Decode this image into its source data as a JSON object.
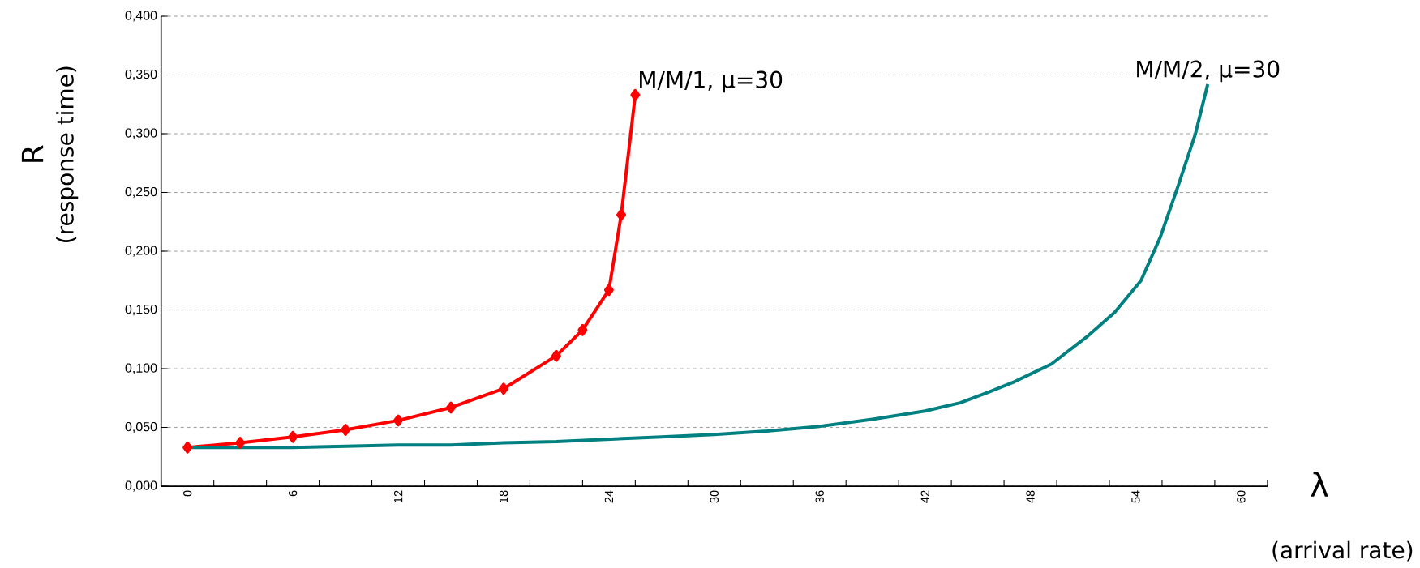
{
  "chart_data": {
    "type": "line",
    "xlabel": "λ",
    "ylabel": "R",
    "annotations": [
      "(response time)",
      "(arrival rate)"
    ],
    "xlim": [
      -1.5,
      61.5
    ],
    "xticks": [
      {
        "value": -1.5,
        "label": null
      },
      {
        "value": 0,
        "label": "0"
      },
      {
        "value": 1.5,
        "label": null
      },
      {
        "value": 4.5,
        "label": null
      },
      {
        "value": 6,
        "label": "6"
      },
      {
        "value": 7.5,
        "label": null
      },
      {
        "value": 10.5,
        "label": null
      },
      {
        "value": 12,
        "label": "12"
      },
      {
        "value": 13.5,
        "label": null
      },
      {
        "value": 16.5,
        "label": null
      },
      {
        "value": 18,
        "label": "18"
      },
      {
        "value": 19.5,
        "label": null
      },
      {
        "value": 22.5,
        "label": null
      },
      {
        "value": 24,
        "label": "24"
      },
      {
        "value": 25.5,
        "label": null
      },
      {
        "value": 28.5,
        "label": null
      },
      {
        "value": 30,
        "label": "30"
      },
      {
        "value": 31.5,
        "label": null
      },
      {
        "value": 34.5,
        "label": null
      },
      {
        "value": 36,
        "label": "36"
      },
      {
        "value": 37.5,
        "label": null
      },
      {
        "value": 40.5,
        "label": null
      },
      {
        "value": 42,
        "label": "42"
      },
      {
        "value": 43.5,
        "label": null
      },
      {
        "value": 46.5,
        "label": null
      },
      {
        "value": 48,
        "label": "48"
      },
      {
        "value": 49.5,
        "label": null
      },
      {
        "value": 52.5,
        "label": null
      },
      {
        "value": 54,
        "label": "54"
      },
      {
        "value": 55.5,
        "label": null
      },
      {
        "value": 58.5,
        "label": null
      },
      {
        "value": 60,
        "label": "60"
      },
      {
        "value": 61.5,
        "label": null
      }
    ],
    "ylim": [
      0,
      0.4
    ],
    "yticks": [
      {
        "value": 0,
        "label": "0,000"
      },
      {
        "value": 0.05,
        "label": "0,050"
      },
      {
        "value": 0.1,
        "label": "0,100"
      },
      {
        "value": 0.15,
        "label": "0,150"
      },
      {
        "value": 0.2,
        "label": "0,200"
      },
      {
        "value": 0.25,
        "label": "0,250"
      },
      {
        "value": 0.3,
        "label": "0,300"
      },
      {
        "value": 0.35,
        "label": "0,350"
      },
      {
        "value": 0.4,
        "label": "0,400"
      }
    ],
    "grid": "y",
    "line_style": "solid",
    "series": [
      {
        "name": "M/M/1, μ=30",
        "color": "#ff0000",
        "marker": "diamond",
        "x": [
          0,
          3,
          6,
          9,
          12,
          15,
          18,
          21,
          22.5,
          24,
          24.7,
          25.5
        ],
        "values": [
          0.033,
          0.037,
          0.042,
          0.048,
          0.056,
          0.067,
          0.083,
          0.111,
          0.133,
          0.167,
          0.231,
          0.333
        ]
      },
      {
        "name": "M/M/2, μ=30",
        "color": "#008080",
        "marker": "none",
        "x": [
          0,
          6,
          12,
          15,
          18,
          21,
          27,
          30,
          33,
          36,
          39,
          42,
          44,
          45.6,
          47.1,
          49.2,
          51.2,
          52.8,
          54.3,
          55.4,
          56.4,
          57.4,
          58.1
        ],
        "values": [
          0.033,
          0.033,
          0.035,
          0.035,
          0.037,
          0.038,
          0.042,
          0.044,
          0.047,
          0.051,
          0.057,
          0.064,
          0.071,
          0.08,
          0.089,
          0.104,
          0.127,
          0.148,
          0.175,
          0.212,
          0.255,
          0.3,
          0.342
        ]
      }
    ]
  }
}
